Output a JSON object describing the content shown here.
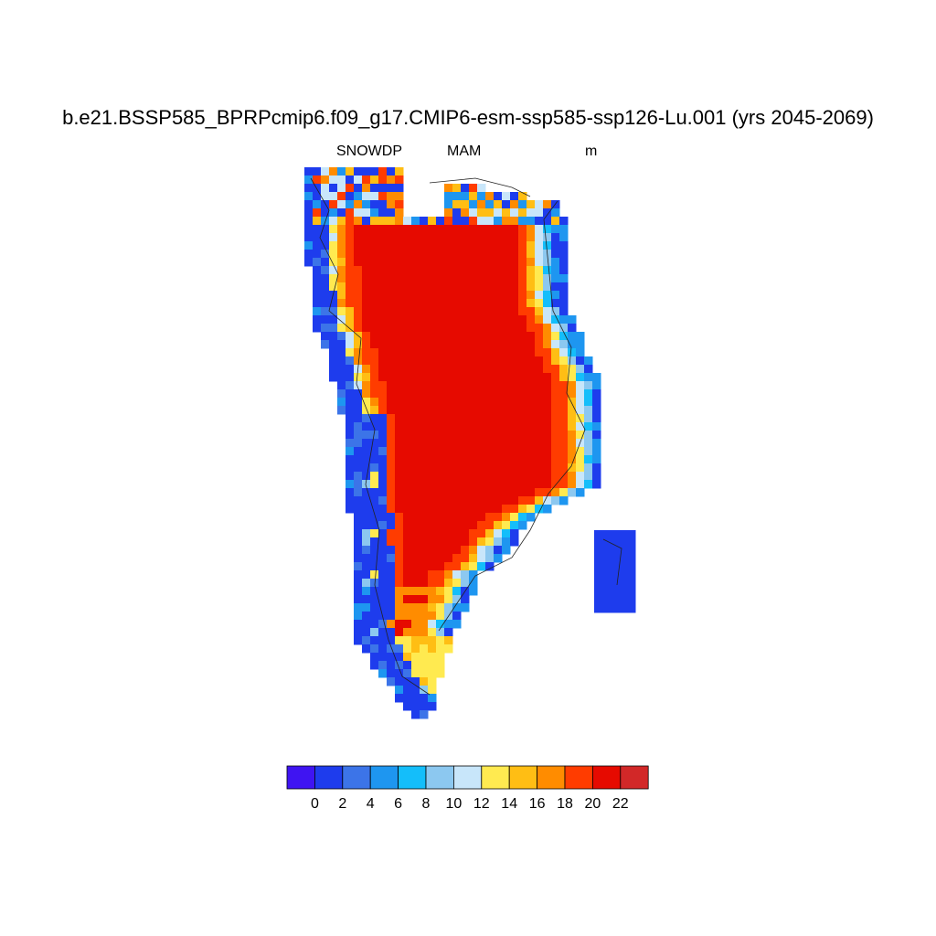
{
  "plot": {
    "title": "b.e21.BSSP585_BPRPcmip6.f09_g17.CMIP6-esm-ssp585-ssp126-Lu.001 (yrs 2045-2069)",
    "variable": "SNOWDP",
    "season": "MAM",
    "units": "m"
  },
  "colorbar": {
    "colors": [
      "#3f14f2",
      "#1e3ced",
      "#3c74e8",
      "#1e96f0",
      "#14befa",
      "#8cc8f0",
      "#c8e6fa",
      "#ffea50",
      "#ffbe14",
      "#ff8c00",
      "#ff3c00",
      "#e60a00",
      "#d22828"
    ],
    "tick_labels": [
      "0",
      "2",
      "4",
      "6",
      "8",
      "10",
      "12",
      "14",
      "16",
      "18",
      "20",
      "22"
    ]
  },
  "map_data": {
    "region": "Greenland",
    "description_levels": "0 = below 0 (dark violet) ... 12 = above 22 (dark red)"
  }
}
